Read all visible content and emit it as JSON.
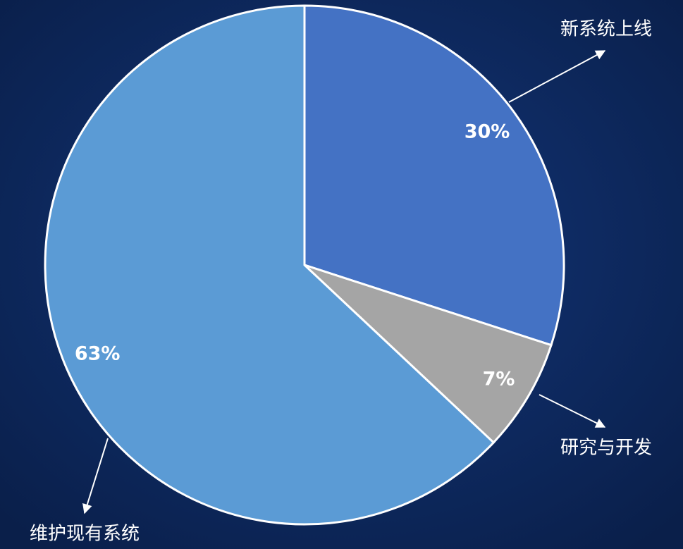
{
  "chart_data": {
    "type": "pie",
    "categories": [
      "新系统上线",
      "研究与开发",
      "维护现有系统"
    ],
    "values": [
      30,
      7,
      63
    ],
    "value_labels": [
      "30%",
      "7%",
      "63%"
    ],
    "colors": [
      "#4472c4",
      "#a5a5a5",
      "#5b9bd5"
    ]
  }
}
